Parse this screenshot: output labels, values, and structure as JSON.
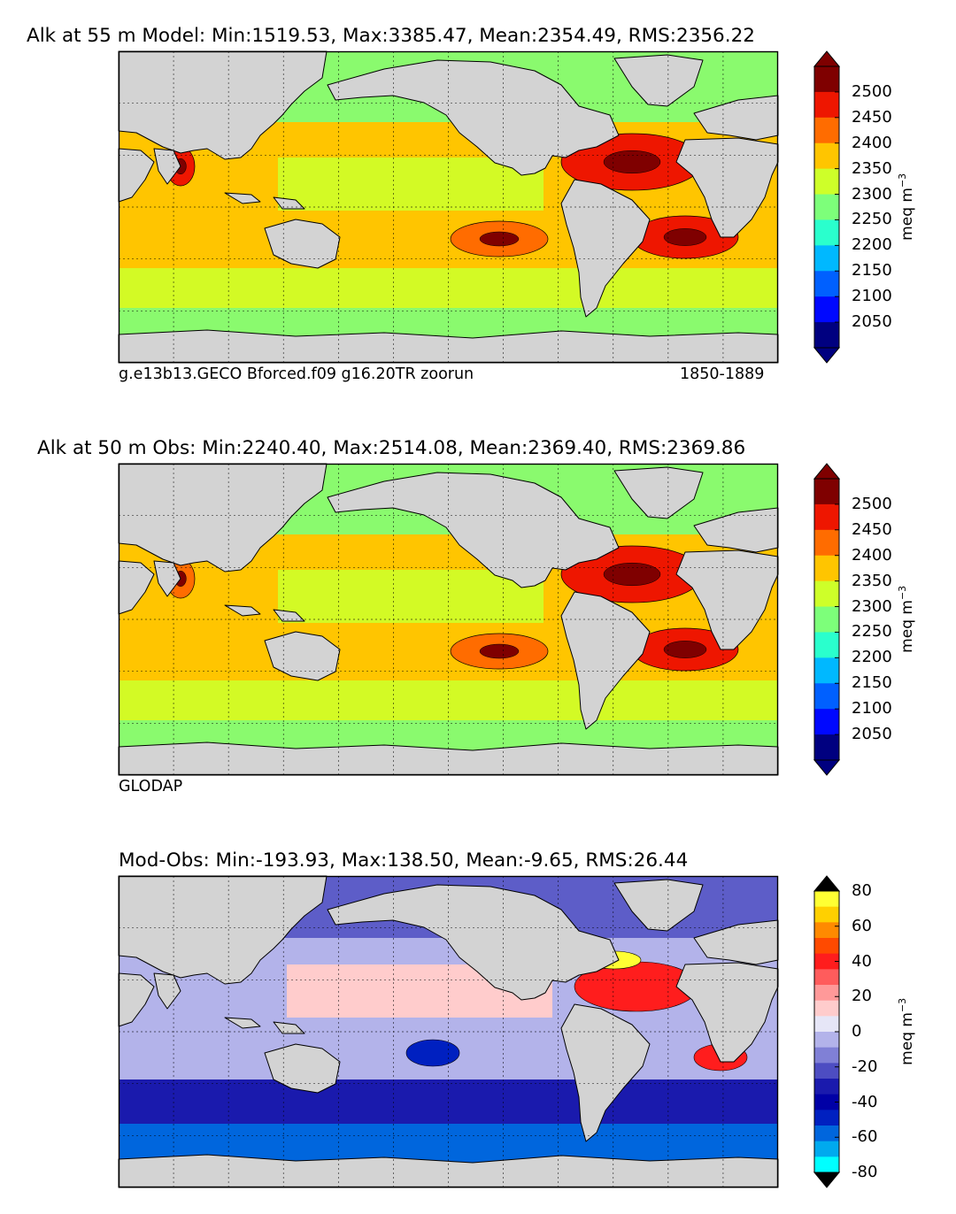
{
  "panels": [
    {
      "id": "model",
      "title": "Alk at 55 m Model: Min:1519.53, Max:3385.47, Mean:2354.49, RMS:2356.22",
      "caption_left": "g.e13b13.GECO Bforced.f09 g16.20TR zoorun",
      "caption_right": "1850-1889",
      "colorbar": {
        "ticks": [
          "2500",
          "2450",
          "2400",
          "2350",
          "2300",
          "2250",
          "2200",
          "2150",
          "2100",
          "2050"
        ],
        "unit": "meq m",
        "unit_exp": "−3",
        "colors": [
          "#7f0000",
          "#ee1600",
          "#ff6c00",
          "#ffc500",
          "#ceff29",
          "#7dff7a",
          "#2affcd",
          "#00b8ff",
          "#0060ff",
          "#0008ff",
          "#000080"
        ],
        "top_tip": "#7f0000",
        "bottom_tip": "#000080"
      },
      "hotspots": [
        {
          "kind": "atlantic-nw",
          "color": "#ee1600"
        },
        {
          "kind": "atlantic-south",
          "color": "#ee1600"
        },
        {
          "kind": "pacific-south",
          "color": "#ff6c00"
        },
        {
          "kind": "arabian-sea",
          "color": "#ee1600"
        }
      ]
    },
    {
      "id": "obs",
      "title": "Alk at 50 m Obs: Min:2240.40, Max:2514.08, Mean:2369.40, RMS:2369.86",
      "caption_left": "GLODAP",
      "caption_right": "",
      "colorbar": {
        "ticks": [
          "2500",
          "2450",
          "2400",
          "2350",
          "2300",
          "2250",
          "2200",
          "2150",
          "2100",
          "2050"
        ],
        "unit": "meq m",
        "unit_exp": "−3",
        "colors": [
          "#7f0000",
          "#ee1600",
          "#ff6c00",
          "#ffc500",
          "#ceff29",
          "#7dff7a",
          "#2affcd",
          "#00b8ff",
          "#0060ff",
          "#0008ff",
          "#000080"
        ],
        "top_tip": "#7f0000",
        "bottom_tip": "#000080"
      },
      "hotspots": [
        {
          "kind": "atlantic-nw",
          "color": "#ee1600"
        },
        {
          "kind": "atlantic-south",
          "color": "#ee1600"
        },
        {
          "kind": "pacific-south",
          "color": "#ff6c00"
        },
        {
          "kind": "arabian-sea",
          "color": "#ff6c00"
        }
      ]
    },
    {
      "id": "diff",
      "title": "Mod-Obs: Min:-193.93, Max:138.50, Mean:-9.65, RMS:26.44",
      "caption_left": "",
      "caption_right": "",
      "colorbar": {
        "ticks": [
          "80",
          "60",
          "40",
          "20",
          "0",
          "-20",
          "-40",
          "-60",
          "-80"
        ],
        "unit": "meq m",
        "unit_exp": "−3",
        "colors": [
          "#ffff33",
          "#ffd000",
          "#ff8a00",
          "#ff4a00",
          "#ff1d1d",
          "#ff5c5c",
          "#ff9999",
          "#ffcccc",
          "#e6e6f7",
          "#b3b3ea",
          "#8080d6",
          "#4d4dc2",
          "#1a1aad",
          "#0000a6",
          "#0020c0",
          "#0066dd",
          "#00aaee",
          "#00ffff"
        ],
        "top_tip": "#000000",
        "bottom_tip": "#000000"
      },
      "hotspots": []
    }
  ]
}
